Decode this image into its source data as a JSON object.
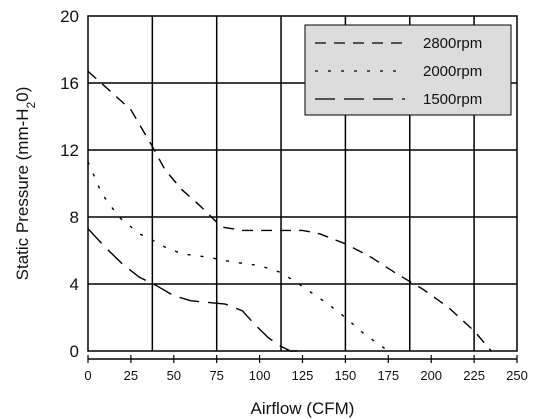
{
  "chart_data": {
    "type": "line",
    "xlabel": "Airflow (CFM)",
    "ylabel_parts": {
      "main": "Static Pressure (mm-H",
      "sub": "2",
      "tail": "0)"
    },
    "xlim": [
      0,
      250
    ],
    "ylim": [
      0,
      20
    ],
    "x_ticks": [
      0,
      25,
      50,
      75,
      100,
      125,
      150,
      175,
      200,
      225,
      250
    ],
    "x_tick_labels": [
      "0",
      "25",
      "50",
      "75",
      "100",
      "125",
      "150",
      "175",
      "200",
      "225",
      "250"
    ],
    "y_ticks": [
      0,
      4,
      8,
      12,
      16,
      20
    ],
    "y_tick_labels": [
      "0",
      "4",
      "8",
      "12",
      "16",
      "20"
    ],
    "grid": true,
    "legend_position": "top-right",
    "legend_background": "#dcdcdc",
    "series": [
      {
        "name": "2800rpm",
        "dash": "long",
        "x": [
          0,
          12,
          25,
          37,
          45,
          55,
          65,
          78,
          90,
          105,
          125,
          135,
          150,
          165,
          180,
          195,
          210,
          225,
          235
        ],
        "y": [
          16.7,
          15.6,
          14.4,
          12.3,
          10.8,
          9.6,
          8.7,
          7.4,
          7.2,
          7.2,
          7.2,
          7.0,
          6.4,
          5.6,
          4.6,
          3.7,
          2.6,
          1.2,
          0.0
        ]
      },
      {
        "name": "2000rpm",
        "dash": "dotted",
        "x": [
          0,
          8,
          18,
          30,
          38,
          45,
          55,
          70,
          85,
          100,
          112,
          120,
          130,
          140,
          150,
          160,
          168,
          175
        ],
        "y": [
          11.3,
          9.4,
          8.0,
          7.0,
          6.6,
          6.2,
          5.8,
          5.6,
          5.3,
          5.1,
          4.7,
          4.2,
          3.5,
          2.8,
          2.0,
          1.1,
          0.5,
          0.0
        ]
      },
      {
        "name": "1500rpm",
        "dash": "dashed",
        "x": [
          0,
          10,
          20,
          30,
          40,
          50,
          60,
          70,
          80,
          90,
          97,
          105,
          112,
          118,
          122
        ],
        "y": [
          7.3,
          6.2,
          5.2,
          4.4,
          3.9,
          3.3,
          3.0,
          2.9,
          2.8,
          2.4,
          1.6,
          0.8,
          0.3,
          0.0,
          0.0
        ]
      }
    ]
  }
}
